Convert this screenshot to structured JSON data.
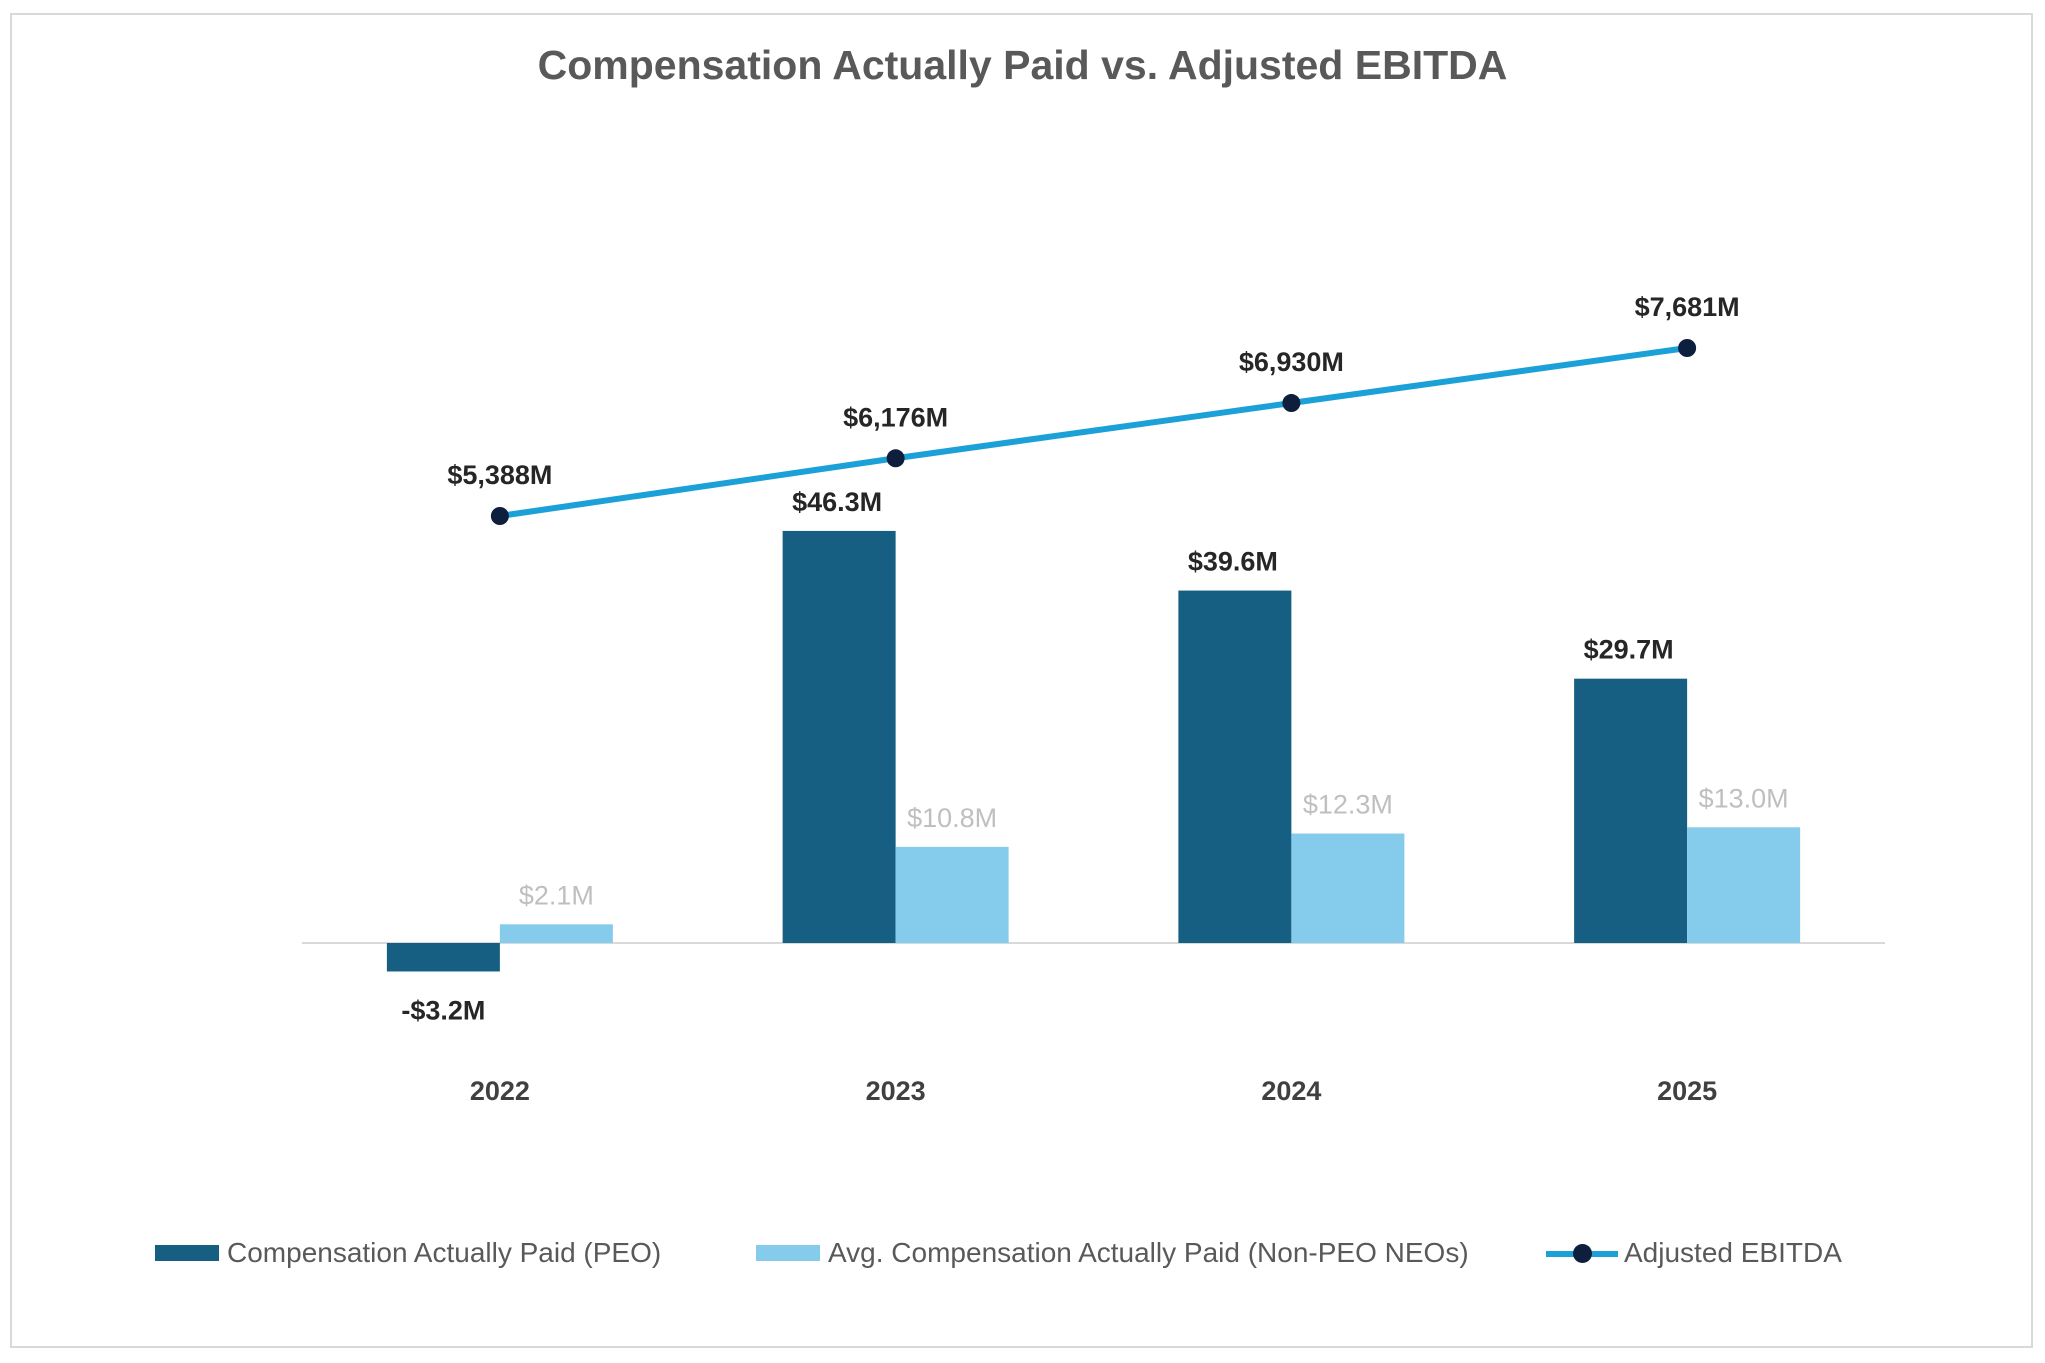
{
  "chart_data": {
    "type": "bar",
    "title": "Compensation Actually Paid vs. Adjusted EBITDA",
    "categories": [
      "2022",
      "2023",
      "2024",
      "2025"
    ],
    "series": [
      {
        "name": "Compensation Actually Paid (PEO)",
        "type": "bar",
        "color": "#175f82",
        "values": [
          -3.2,
          46.3,
          39.6,
          29.7
        ],
        "labels": [
          "-$3.2M",
          "$46.3M",
          "$39.6M",
          "$29.7M"
        ],
        "label_color": "#262626"
      },
      {
        "name": "Avg. Compensation Actually Paid (Non-PEO NEOs)",
        "type": "bar",
        "color": "#85cbeb",
        "values": [
          2.1,
          10.8,
          12.3,
          13.0
        ],
        "labels": [
          "$2.1M",
          "$10.8M",
          "$12.3M",
          "$13.0M"
        ],
        "label_color": "#bfbfbf"
      },
      {
        "name": "Adjusted EBITDA",
        "type": "line",
        "color": "#1ba1d8",
        "marker_color": "#0d1f3c",
        "axis": "secondary",
        "values": [
          5388,
          6176,
          6930,
          7681
        ],
        "labels": [
          "$5,388M",
          "$6,176M",
          "$6,930M",
          "$7,681M"
        ],
        "label_color": "#262626"
      }
    ],
    "legend_position": "bottom",
    "grid": false,
    "ylim": [
      -10,
      60
    ],
    "y2lim": [
      -6000,
      10000
    ]
  }
}
